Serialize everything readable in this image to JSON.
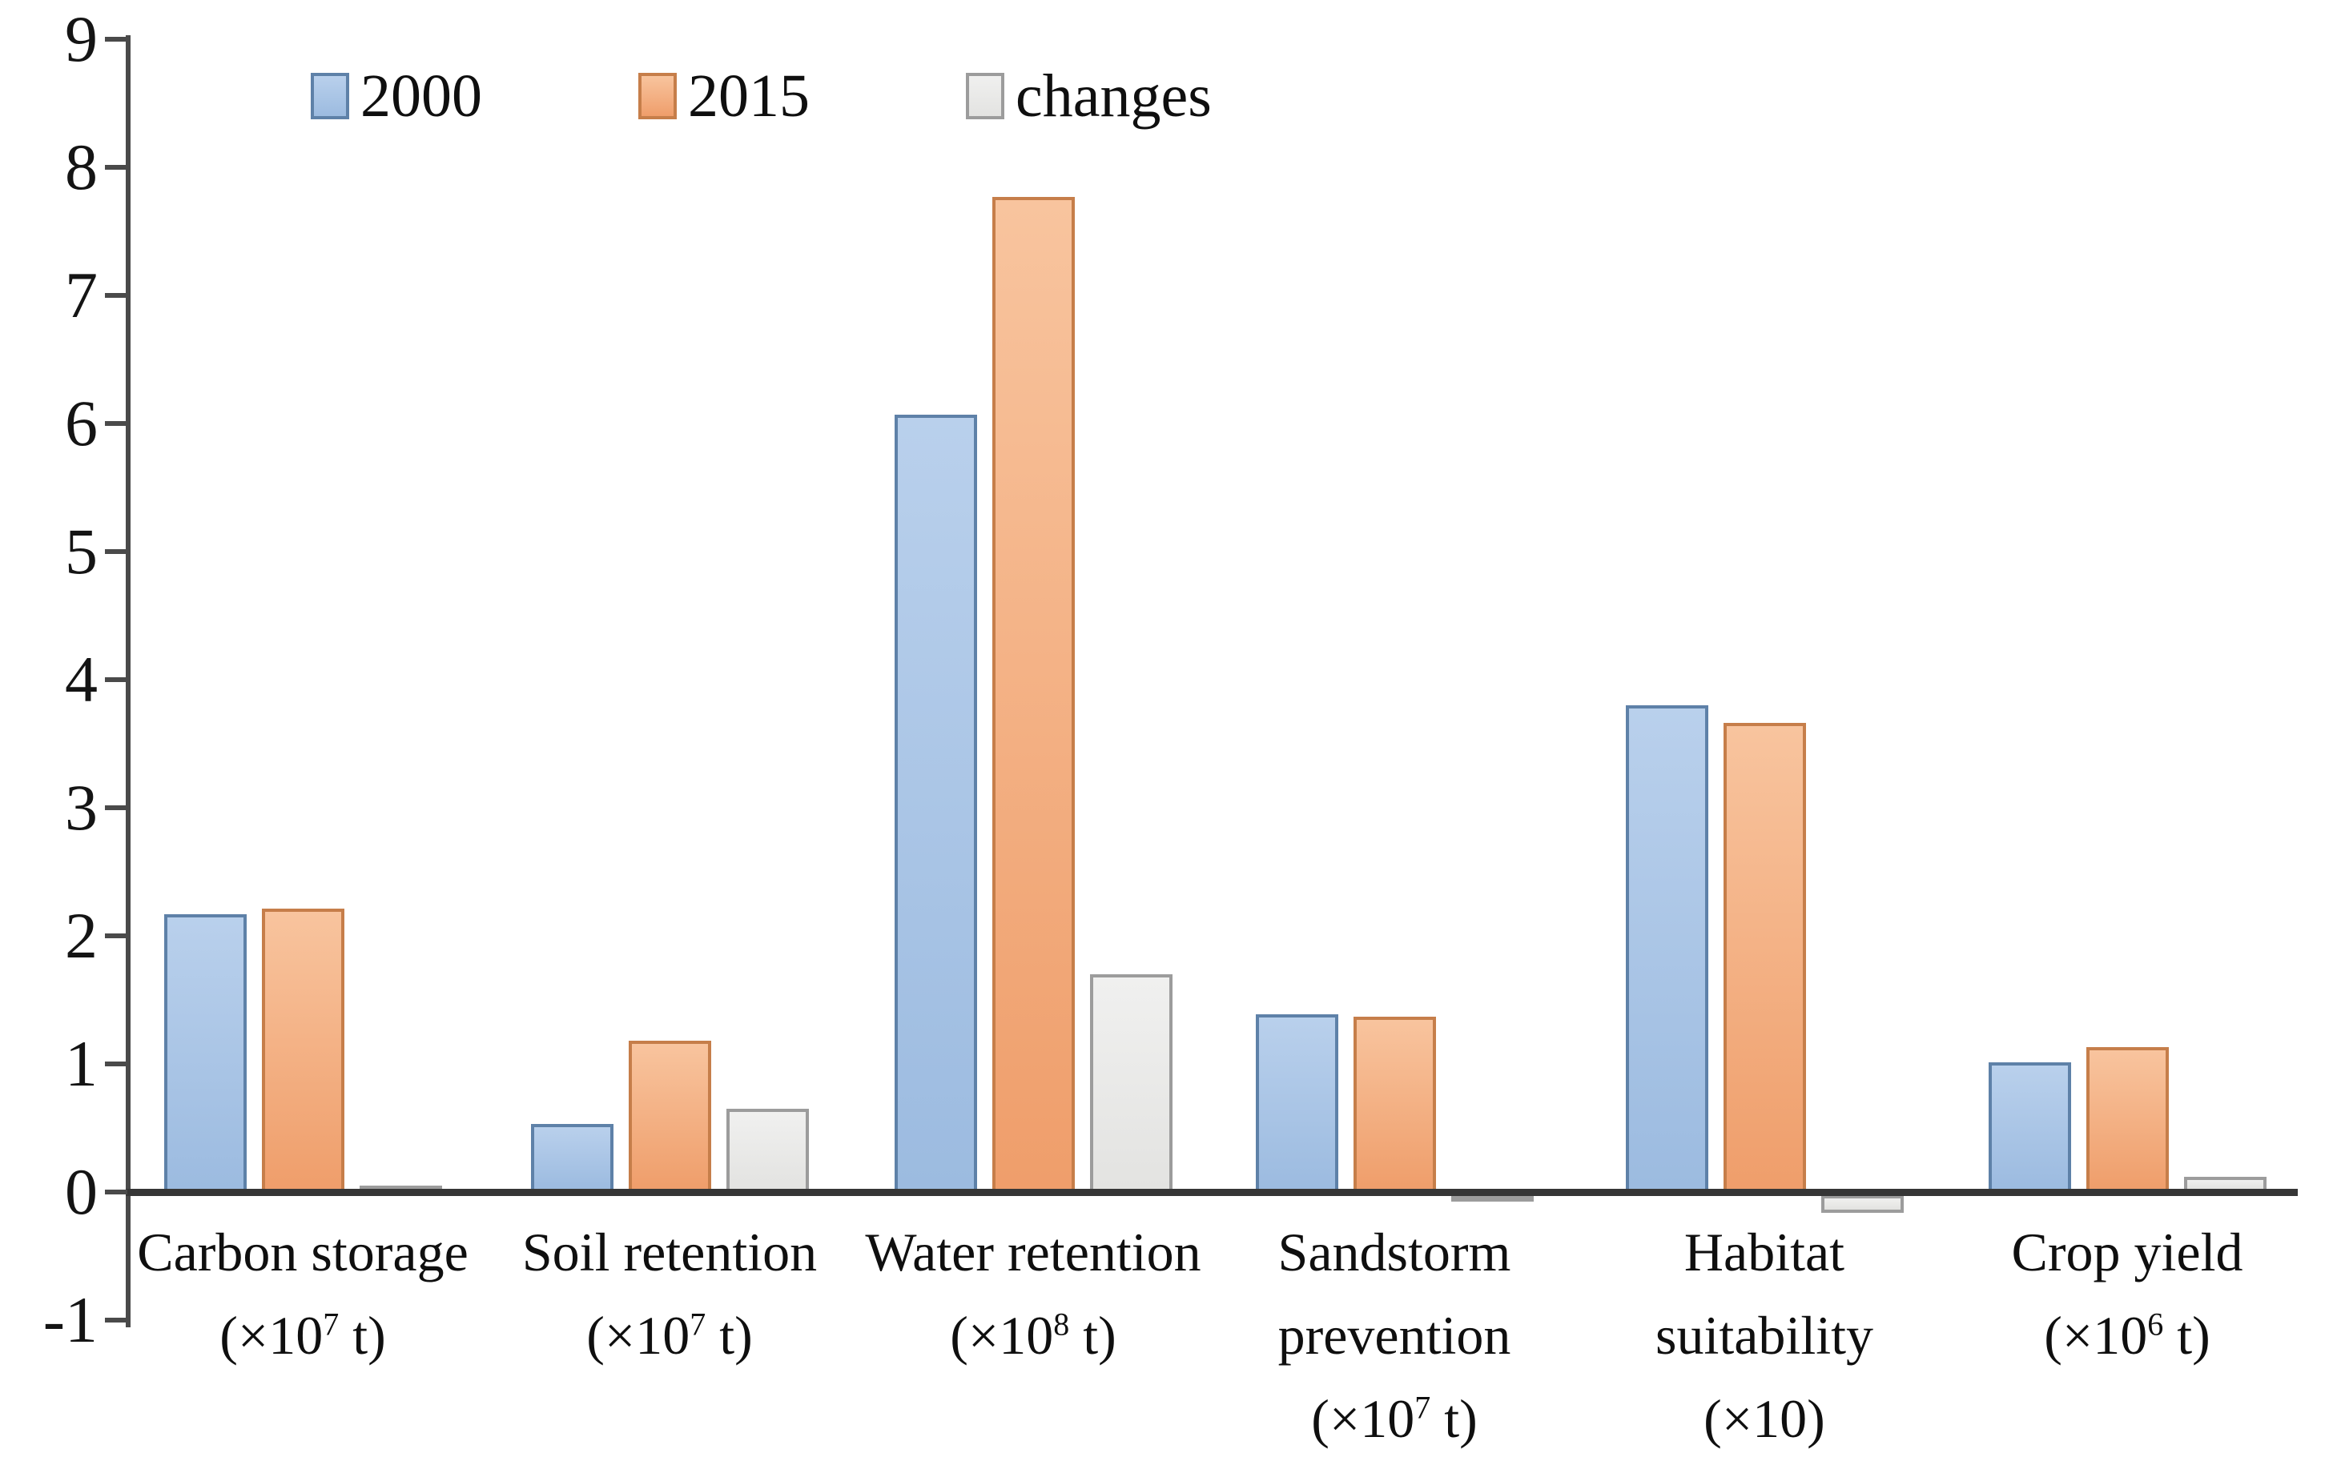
{
  "legend": {
    "items": [
      {
        "label": "2000"
      },
      {
        "label": "2015"
      },
      {
        "label": "changes"
      }
    ]
  },
  "chart_data": {
    "type": "bar",
    "title": "",
    "xlabel": "",
    "ylabel": "",
    "ylim": [
      -1,
      9
    ],
    "yticks": [
      9,
      8,
      7,
      6,
      5,
      4,
      3,
      2,
      1,
      0,
      -1
    ],
    "grid": false,
    "legend_position": "top-left",
    "categories": [
      {
        "label": "Carbon storage (×10⁷ t)",
        "name_lines": [
          "Carbon storage"
        ],
        "unit_base": "(×10",
        "unit_exp": "7",
        "unit_suffix": " t)"
      },
      {
        "label": "Soil retention (×10⁷ t)",
        "name_lines": [
          "Soil retention"
        ],
        "unit_base": "(×10",
        "unit_exp": "7",
        "unit_suffix": " t)"
      },
      {
        "label": "Water retention (×10⁸ t)",
        "name_lines": [
          "Water retention"
        ],
        "unit_base": "(×10",
        "unit_exp": "8",
        "unit_suffix": " t)"
      },
      {
        "label": "Sandstorm prevention (×10⁷ t)",
        "name_lines": [
          "Sandstorm",
          "prevention"
        ],
        "unit_base": "(×10",
        "unit_exp": "7",
        "unit_suffix": " t)"
      },
      {
        "label": "Habitat suitability (×10)",
        "name_lines": [
          "Habitat",
          "suitability"
        ],
        "unit_base": "(×10",
        "unit_exp": "",
        "unit_suffix": ")"
      },
      {
        "label": "Crop yield (×10⁶ t)",
        "name_lines": [
          "Crop yield"
        ],
        "unit_base": "(×10",
        "unit_exp": "6",
        "unit_suffix": " t)"
      }
    ],
    "series": [
      {
        "name": "2000",
        "values": [
          2.17,
          0.53,
          6.07,
          1.39,
          3.8,
          1.01
        ]
      },
      {
        "name": "2015",
        "values": [
          2.21,
          1.18,
          7.77,
          1.37,
          3.66,
          1.13
        ]
      },
      {
        "name": "changes",
        "values": [
          0.05,
          0.65,
          1.7,
          -0.03,
          -0.14,
          0.12
        ]
      }
    ],
    "colors": {
      "2000": {
        "fill_top": "#b9d0ec",
        "fill_bottom": "#9cbbe0",
        "border": "#5e81a8"
      },
      "2015": {
        "fill_top": "#f8c49e",
        "fill_bottom": "#ef9e6b",
        "border": "#c67e4a"
      },
      "changes": {
        "fill_top": "#f0f0ef",
        "fill_bottom": "#e3e3e1",
        "border": "#9c9c9c"
      }
    },
    "axis_color": "#3d3d3d"
  }
}
